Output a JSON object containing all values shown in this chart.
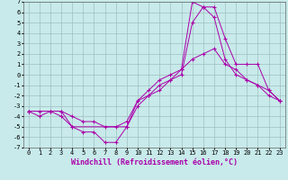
{
  "xlabel": "Windchill (Refroidissement éolien,°C)",
  "background_color": "#c8eaea",
  "line_color": "#aa00aa",
  "xlim": [
    -0.5,
    23.5
  ],
  "ylim": [
    -7,
    7
  ],
  "xticks": [
    0,
    1,
    2,
    3,
    4,
    5,
    6,
    7,
    8,
    9,
    10,
    11,
    12,
    13,
    14,
    15,
    16,
    17,
    18,
    19,
    20,
    21,
    22,
    23
  ],
  "yticks": [
    -7,
    -6,
    -5,
    -4,
    -3,
    -2,
    -1,
    0,
    1,
    2,
    3,
    4,
    5,
    6,
    7
  ],
  "line1_x": [
    0,
    1,
    2,
    3,
    4,
    5,
    6,
    7,
    8,
    9,
    10,
    11,
    12,
    13,
    14,
    15,
    16,
    17,
    18,
    19,
    20,
    21,
    22,
    23
  ],
  "line1_y": [
    -3.5,
    -4.0,
    -3.5,
    -3.5,
    -5.0,
    -5.5,
    -5.5,
    -6.5,
    -6.5,
    -5.0,
    -2.5,
    -2.0,
    -1.0,
    -0.5,
    0.5,
    7.0,
    6.5,
    6.5,
    3.5,
    1.0,
    1.0,
    1.0,
    -1.5,
    -2.5
  ],
  "line2_x": [
    0,
    2,
    3,
    4,
    9,
    10,
    11,
    12,
    13,
    14,
    15,
    16,
    17,
    18,
    19,
    20,
    21,
    22,
    23
  ],
  "line2_y": [
    -3.5,
    -3.5,
    -4.0,
    -5.0,
    -5.0,
    -3.0,
    -2.0,
    -1.5,
    -0.5,
    0.0,
    5.0,
    6.5,
    5.5,
    1.5,
    0.0,
    -0.5,
    -1.0,
    -2.0,
    -2.5
  ],
  "line3_x": [
    0,
    1,
    2,
    3,
    4,
    5,
    6,
    7,
    8,
    9,
    10,
    11,
    12,
    13,
    14,
    15,
    16,
    17,
    18,
    19,
    20,
    21,
    22,
    23
  ],
  "line3_y": [
    -3.5,
    -3.5,
    -3.5,
    -3.5,
    -4.0,
    -4.5,
    -4.5,
    -5.0,
    -5.0,
    -4.5,
    -2.5,
    -1.5,
    -0.5,
    0.0,
    0.5,
    1.5,
    2.0,
    2.5,
    1.0,
    0.5,
    -0.5,
    -1.0,
    -1.5,
    -2.5
  ],
  "grid_color": "#9fbfbf",
  "tick_fontsize": 5,
  "xlabel_fontsize": 6
}
